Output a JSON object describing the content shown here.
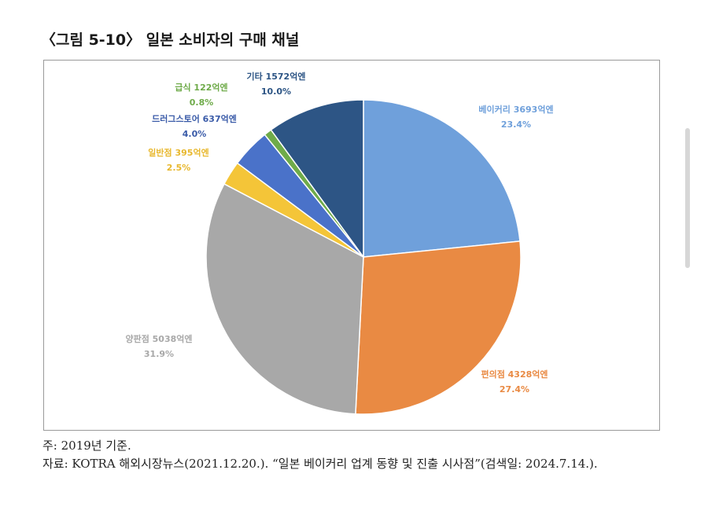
{
  "figure": {
    "title": "〈그림 5-10〉 일본 소비자의 구매 채널",
    "note": "주: 2019년 기준.",
    "source": "자료: KOTRA 해외시장뉴스(2021.12.20.). “일본 베이커리 업계 동향 및 진출 시사점”(검색일: 2024.7.14.)."
  },
  "chart_data": {
    "type": "pie",
    "title": "",
    "start": "12 o'clock",
    "direction": "clockwise",
    "slices": [
      {
        "label": "베이커리 3693억엔",
        "percent_label": "23.4%",
        "value": 23.4,
        "color": "#6FA0DB"
      },
      {
        "label": "편의점 4328억엔",
        "percent_label": "27.4%",
        "value": 27.4,
        "color": "#E98A43"
      },
      {
        "label": "양판점 5038억엔",
        "percent_label": "31.9%",
        "value": 31.9,
        "color": "#A8A8A8"
      },
      {
        "label": "일반점 395억엔",
        "percent_label": "2.5%",
        "value": 2.5,
        "color": "#F4C538"
      },
      {
        "label": "드러그스토어 637억엔",
        "percent_label": "4.0%",
        "value": 4.0,
        "color": "#4A72C9"
      },
      {
        "label": "급식 122억엔",
        "percent_label": "0.8%",
        "value": 0.8,
        "color": "#6FAB4A"
      },
      {
        "label": "기타 1572억엔",
        "percent_label": "10.0%",
        "value": 10.0,
        "color": "#2D5585"
      }
    ],
    "label_colors": [
      "#6FA0DB",
      "#E98A43",
      "#A8A8A8",
      "#E8B82E",
      "#3A5BA8",
      "#6FAB4A",
      "#2D5585"
    ]
  }
}
